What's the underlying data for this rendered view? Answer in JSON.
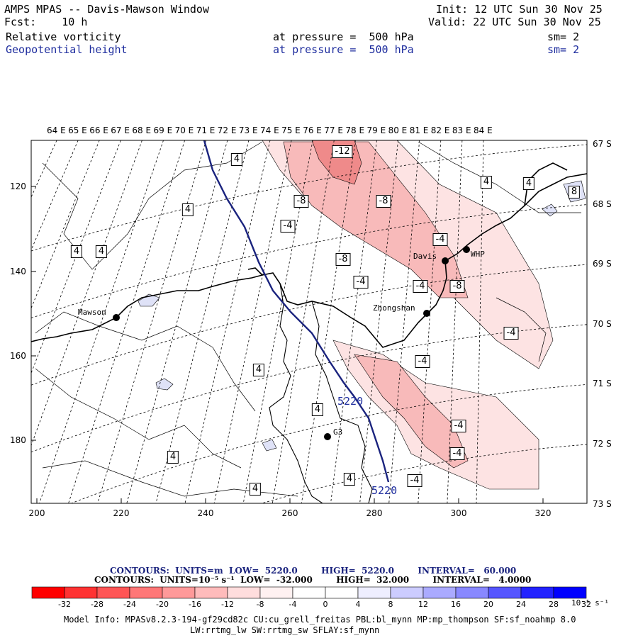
{
  "header": {
    "title": "AMPS MPAS -- Davis-Mawson Window",
    "forecast": "Fcst:    10 h",
    "init": "Init: 12 UTC Sun 30 Nov 25",
    "valid": "Valid: 22 UTC Sun 30 Nov 25",
    "field1_name": "Relative vorticity",
    "field1_level": "at pressure =  500 hPa",
    "field1_smooth": "sm= 2",
    "field2_name": "Geopotential height",
    "field2_level": "at pressure =  500 hPa",
    "field2_smooth": "sm= 2"
  },
  "colors": {
    "height_contour": "#1a237e",
    "coast": "#000000",
    "neg_light": "#fde3e3",
    "neg_mid": "#f8baba",
    "neg_strong": "#ef8a8a",
    "pos_light": "#dfe2f7"
  },
  "map": {
    "lon_labels": [
      "64 E",
      "65 E",
      "66 E",
      "67 E",
      "68 E",
      "69 E",
      "70 E",
      "71 E",
      "72 E",
      "73 E",
      "74 E",
      "75 E",
      "76 E",
      "77 E",
      "78 E",
      "79 E",
      "80 E",
      "81 E",
      "82 E",
      "83 E",
      "84 E"
    ],
    "lat_labels": [
      "67 S",
      "68 S",
      "69 S",
      "70 S",
      "71 S",
      "72 S",
      "73 S"
    ],
    "y_ticks": [
      "120",
      "140",
      "160",
      "180"
    ],
    "x_ticks": [
      "200",
      "220",
      "240",
      "260",
      "280",
      "300",
      "320"
    ],
    "stations": [
      "Mawson",
      "Davis",
      "WHP",
      "Zhongshan",
      "G3"
    ],
    "contour_labels": [
      "-12",
      "-8",
      "-8",
      "-4",
      "-4",
      "-8",
      "-4",
      "-4",
      "-4",
      "-8",
      "-4",
      "-4",
      "-4",
      "-4",
      "-4",
      "-4",
      "4",
      "4",
      "4",
      "4",
      "4",
      "4",
      "4",
      "4",
      "4",
      "4",
      "4",
      "8"
    ],
    "height_labels": [
      "5220",
      "5220"
    ]
  },
  "legend": {
    "line1": "CONTOURS:  UNITS=m  LOW=  5220.0        HIGH=  5220.0        INTERVAL=   60.000",
    "line2": "CONTOURS:  UNITS=10⁻⁵ s⁻¹  LOW=  -32.000        HIGH=  32.000        INTERVAL=   4.0000",
    "colorbar_values": [
      -32,
      -28,
      -24,
      -20,
      -16,
      -12,
      -8,
      -4,
      0,
      4,
      8,
      12,
      16,
      20,
      24,
      28,
      32
    ],
    "colorbar_colors": [
      "#ff0000",
      "#ff3232",
      "#ff5555",
      "#ff7777",
      "#ff9999",
      "#ffbbbb",
      "#ffdddd",
      "#fff1f1",
      "#ffffff",
      "#ffffff",
      "#eeeeff",
      "#ccccff",
      "#aaaaff",
      "#8888ff",
      "#5555ff",
      "#2222ff",
      "#0000ff"
    ],
    "units": "10⁻⁵ s⁻¹"
  },
  "footer": {
    "model_info": "Model Info: MPASv8.2.3-194-gf29cd82c CU:cu_grell_freitas PBL:bl_mynn MP:mp_thompson SF:sf_noahmp 8.0",
    "model_info2": "LW:rrtmg_lw SW:rrtmg_sw SFLAY:sf_mynn"
  }
}
